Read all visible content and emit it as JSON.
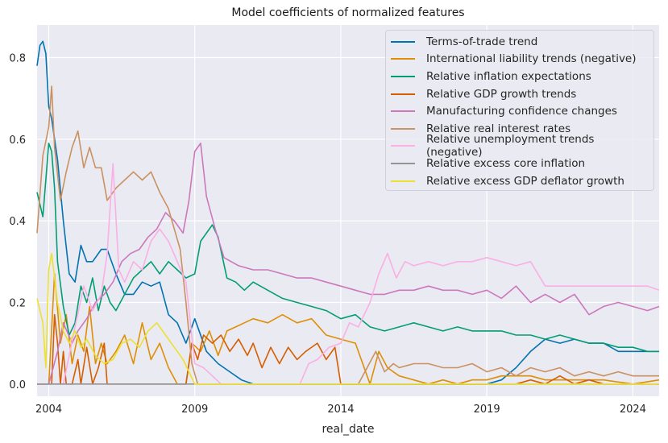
{
  "chart_data": {
    "type": "line",
    "title": "Model coefficients of normalized features",
    "xlabel": "real_date",
    "ylabel": "",
    "xlim": [
      2003.6,
      2024.9
    ],
    "ylim": [
      -0.03,
      0.88
    ],
    "xticks": [
      2004,
      2009,
      2014,
      2019,
      2024
    ],
    "yticks": [
      0.0,
      0.2,
      0.4,
      0.6,
      0.8
    ],
    "grid": true,
    "legend_position": "top-right",
    "series": [
      {
        "name": "Terms-of-trade trend",
        "color": "#0173b2",
        "x": [
          2003.6,
          2003.7,
          2003.8,
          2003.9,
          2004.0,
          2004.1,
          2004.3,
          2004.5,
          2004.7,
          2004.9,
          2005.1,
          2005.3,
          2005.5,
          2005.8,
          2006.0,
          2006.3,
          2006.6,
          2006.9,
          2007.2,
          2007.5,
          2007.8,
          2008.1,
          2008.4,
          2008.7,
          2009.0,
          2009.4,
          2009.8,
          2010.2,
          2010.6,
          2011.0,
          2012.0,
          2013.0,
          2014.0,
          2015.0,
          2016.0,
          2017.0,
          2018.0,
          2019.0,
          2019.5,
          2020.0,
          2020.5,
          2021.0,
          2021.5,
          2022.0,
          2022.5,
          2023.0,
          2023.5,
          2024.0,
          2024.5,
          2024.9
        ],
        "y": [
          0.78,
          0.83,
          0.84,
          0.81,
          0.68,
          0.65,
          0.55,
          0.4,
          0.27,
          0.25,
          0.34,
          0.3,
          0.3,
          0.33,
          0.33,
          0.27,
          0.22,
          0.22,
          0.25,
          0.24,
          0.25,
          0.17,
          0.15,
          0.1,
          0.16,
          0.08,
          0.05,
          0.03,
          0.01,
          0.0,
          0.0,
          0.0,
          0.0,
          0.0,
          0.0,
          0.0,
          0.0,
          0.0,
          0.01,
          0.04,
          0.08,
          0.11,
          0.1,
          0.11,
          0.1,
          0.1,
          0.08,
          0.08,
          0.08,
          0.08
        ]
      },
      {
        "name": "International liability trends (negative)",
        "color": "#de8f05",
        "x": [
          2003.6,
          2004.0,
          2004.2,
          2004.4,
          2004.6,
          2004.8,
          2005.0,
          2005.2,
          2005.4,
          2005.6,
          2005.8,
          2006.0,
          2006.3,
          2006.6,
          2006.9,
          2007.2,
          2007.5,
          2007.8,
          2008.1,
          2008.4,
          2008.7,
          2008.9,
          2009.2,
          2009.5,
          2009.8,
          2010.1,
          2010.4,
          2010.7,
          2011.0,
          2011.5,
          2012.0,
          2012.5,
          2013.0,
          2013.5,
          2014.0,
          2014.5,
          2015.0,
          2015.3,
          2015.6,
          2016.0,
          2016.5,
          2017.0,
          2017.5,
          2018.0,
          2018.5,
          2019.0,
          2019.5,
          2020.0,
          2020.5,
          2021.0,
          2022.0,
          2023.0,
          2024.0,
          2024.9
        ],
        "y": [
          0.0,
          0.0,
          0.27,
          0.1,
          0.17,
          0.05,
          0.12,
          0.08,
          0.19,
          0.05,
          0.1,
          0.05,
          0.08,
          0.12,
          0.05,
          0.15,
          0.06,
          0.1,
          0.04,
          0.0,
          0.0,
          0.1,
          0.08,
          0.13,
          0.07,
          0.13,
          0.14,
          0.15,
          0.16,
          0.15,
          0.17,
          0.15,
          0.16,
          0.12,
          0.11,
          0.1,
          0.0,
          0.08,
          0.04,
          0.02,
          0.01,
          0.0,
          0.01,
          0.0,
          0.01,
          0.01,
          0.02,
          0.02,
          0.02,
          0.01,
          0.01,
          0.01,
          0.0,
          0.01
        ]
      },
      {
        "name": "Relative inflation expectations",
        "color": "#029e73",
        "x": [
          2003.6,
          2003.8,
          2004.0,
          2004.1,
          2004.2,
          2004.3,
          2004.5,
          2004.7,
          2004.9,
          2005.1,
          2005.3,
          2005.5,
          2005.7,
          2005.9,
          2006.1,
          2006.3,
          2006.6,
          2006.9,
          2007.2,
          2007.5,
          2007.8,
          2008.1,
          2008.4,
          2008.7,
          2009.0,
          2009.2,
          2009.4,
          2009.6,
          2009.8,
          2010.1,
          2010.4,
          2010.7,
          2011.0,
          2011.5,
          2012.0,
          2012.5,
          2013.0,
          2013.5,
          2014.0,
          2014.5,
          2015.0,
          2015.5,
          2016.0,
          2016.5,
          2017.0,
          2017.5,
          2018.0,
          2018.5,
          2019.0,
          2019.5,
          2020.0,
          2020.5,
          2021.0,
          2021.5,
          2022.0,
          2022.5,
          2023.0,
          2023.5,
          2024.0,
          2024.5,
          2024.9
        ],
        "y": [
          0.47,
          0.41,
          0.59,
          0.57,
          0.48,
          0.3,
          0.19,
          0.12,
          0.15,
          0.24,
          0.2,
          0.26,
          0.18,
          0.24,
          0.2,
          0.18,
          0.22,
          0.26,
          0.28,
          0.3,
          0.27,
          0.3,
          0.28,
          0.26,
          0.27,
          0.35,
          0.37,
          0.39,
          0.36,
          0.26,
          0.25,
          0.23,
          0.25,
          0.23,
          0.21,
          0.2,
          0.19,
          0.18,
          0.16,
          0.17,
          0.14,
          0.13,
          0.14,
          0.15,
          0.14,
          0.13,
          0.14,
          0.13,
          0.13,
          0.13,
          0.12,
          0.12,
          0.11,
          0.12,
          0.11,
          0.1,
          0.1,
          0.09,
          0.09,
          0.08,
          0.08
        ]
      },
      {
        "name": "Relative GDP growth trends",
        "color": "#d55e00",
        "x": [
          2003.6,
          2004.1,
          2004.2,
          2004.3,
          2004.4,
          2004.5,
          2004.6,
          2004.8,
          2005.0,
          2005.1,
          2005.3,
          2005.5,
          2005.7,
          2005.9,
          2006.0,
          2006.2,
          2006.5,
          2008.7,
          2008.9,
          2009.1,
          2009.3,
          2009.6,
          2009.9,
          2010.2,
          2010.5,
          2010.8,
          2011.0,
          2011.3,
          2011.6,
          2011.9,
          2012.2,
          2012.5,
          2012.8,
          2013.2,
          2013.5,
          2013.8,
          2014.0,
          2014.5,
          2015.0,
          2016.0,
          2020.0,
          2020.5,
          2021.0,
          2021.5,
          2022.0,
          2022.5,
          2023.0,
          2024.0,
          2024.9
        ],
        "y": [
          0.0,
          0.0,
          0.17,
          0.1,
          0.0,
          0.08,
          0.0,
          0.0,
          0.06,
          0.0,
          0.09,
          0.0,
          0.04,
          0.1,
          0.0,
          0.0,
          0.0,
          0.0,
          0.1,
          0.06,
          0.12,
          0.1,
          0.12,
          0.08,
          0.11,
          0.07,
          0.1,
          0.04,
          0.09,
          0.05,
          0.09,
          0.06,
          0.08,
          0.1,
          0.06,
          0.09,
          0.0,
          0.0,
          0.0,
          0.0,
          0.0,
          0.01,
          0.0,
          0.02,
          0.0,
          0.01,
          0.0,
          0.0,
          0.0
        ]
      },
      {
        "name": "Manufacturing confidence changes",
        "color": "#cc78bc",
        "x": [
          2003.6,
          2004.0,
          2004.3,
          2004.5,
          2004.8,
          2005.0,
          2005.3,
          2005.6,
          2005.9,
          2006.2,
          2006.5,
          2006.8,
          2007.1,
          2007.4,
          2007.7,
          2008.0,
          2008.3,
          2008.6,
          2008.8,
          2009.0,
          2009.2,
          2009.4,
          2009.7,
          2010.0,
          2010.5,
          2011.0,
          2011.5,
          2012.0,
          2012.5,
          2013.0,
          2013.5,
          2014.0,
          2014.5,
          2015.0,
          2015.5,
          2016.0,
          2016.5,
          2017.0,
          2017.5,
          2018.0,
          2018.5,
          2019.0,
          2019.5,
          2020.0,
          2020.5,
          2021.0,
          2021.5,
          2022.0,
          2022.5,
          2023.0,
          2023.5,
          2024.0,
          2024.5,
          2024.9
        ],
        "y": [
          0.0,
          0.0,
          0.08,
          0.15,
          0.1,
          0.13,
          0.16,
          0.2,
          0.22,
          0.25,
          0.3,
          0.32,
          0.33,
          0.36,
          0.38,
          0.42,
          0.4,
          0.37,
          0.45,
          0.57,
          0.59,
          0.46,
          0.38,
          0.31,
          0.29,
          0.28,
          0.28,
          0.27,
          0.26,
          0.26,
          0.25,
          0.24,
          0.23,
          0.22,
          0.22,
          0.23,
          0.23,
          0.24,
          0.23,
          0.23,
          0.22,
          0.23,
          0.21,
          0.24,
          0.2,
          0.22,
          0.2,
          0.22,
          0.17,
          0.19,
          0.2,
          0.19,
          0.18,
          0.19
        ]
      },
      {
        "name": "Relative real interest rates",
        "color": "#ca9161",
        "x": [
          2003.6,
          2003.8,
          2004.0,
          2004.1,
          2004.2,
          2004.4,
          2004.6,
          2004.8,
          2005.0,
          2005.2,
          2005.4,
          2005.6,
          2005.8,
          2006.0,
          2006.3,
          2006.6,
          2006.9,
          2007.2,
          2007.5,
          2007.8,
          2008.1,
          2008.3,
          2008.5,
          2008.7,
          2008.9,
          2009.1,
          2009.5,
          2010.0,
          2012.0,
          2014.0,
          2014.6,
          2014.9,
          2015.2,
          2015.5,
          2015.8,
          2016.0,
          2016.5,
          2017.0,
          2017.5,
          2018.0,
          2018.5,
          2019.0,
          2019.5,
          2020.0,
          2020.5,
          2021.0,
          2021.5,
          2022.0,
          2022.5,
          2023.0,
          2023.5,
          2024.0,
          2024.5,
          2024.9
        ],
        "y": [
          0.37,
          0.56,
          0.63,
          0.73,
          0.58,
          0.45,
          0.52,
          0.58,
          0.62,
          0.53,
          0.58,
          0.53,
          0.53,
          0.45,
          0.48,
          0.5,
          0.52,
          0.5,
          0.52,
          0.47,
          0.43,
          0.38,
          0.33,
          0.2,
          0.05,
          0.0,
          0.0,
          0.0,
          0.0,
          0.0,
          0.0,
          0.04,
          0.08,
          0.03,
          0.05,
          0.04,
          0.05,
          0.05,
          0.04,
          0.04,
          0.05,
          0.03,
          0.04,
          0.02,
          0.04,
          0.03,
          0.04,
          0.02,
          0.03,
          0.02,
          0.03,
          0.02,
          0.02,
          0.02
        ]
      },
      {
        "name": "Relative unemployment trends (negative)",
        "color": "#fbafe4",
        "x": [
          2003.6,
          2004.5,
          2004.9,
          2005.2,
          2005.5,
          2005.8,
          2006.0,
          2006.2,
          2006.4,
          2006.6,
          2006.9,
          2007.2,
          2007.5,
          2007.8,
          2008.1,
          2008.4,
          2008.7,
          2009.0,
          2009.3,
          2009.6,
          2009.9,
          2012.6,
          2012.9,
          2013.2,
          2013.6,
          2014.0,
          2014.3,
          2014.6,
          2015.0,
          2015.3,
          2015.6,
          2015.9,
          2016.2,
          2016.5,
          2017.0,
          2017.5,
          2018.0,
          2018.5,
          2019.0,
          2019.5,
          2020.0,
          2020.5,
          2021.0,
          2021.5,
          2022.0,
          2022.5,
          2023.0,
          2023.5,
          2024.0,
          2024.5,
          2024.9
        ],
        "y": [
          0.0,
          0.0,
          0.14,
          0.24,
          0.18,
          0.22,
          0.32,
          0.54,
          0.28,
          0.25,
          0.3,
          0.28,
          0.35,
          0.38,
          0.35,
          0.3,
          0.25,
          0.05,
          0.04,
          0.02,
          0.0,
          0.0,
          0.05,
          0.06,
          0.09,
          0.1,
          0.15,
          0.14,
          0.2,
          0.27,
          0.32,
          0.26,
          0.3,
          0.29,
          0.3,
          0.29,
          0.3,
          0.3,
          0.31,
          0.3,
          0.29,
          0.3,
          0.24,
          0.24,
          0.24,
          0.24,
          0.24,
          0.24,
          0.24,
          0.24,
          0.23
        ]
      },
      {
        "name": "Relative excess core inflation",
        "color": "#949494",
        "x": [
          2003.6,
          2024.9
        ],
        "y": [
          0.0,
          0.0
        ]
      },
      {
        "name": "Relative excess GDP deflator growth",
        "color": "#ece133",
        "x": [
          2003.6,
          2003.8,
          2003.9,
          2004.0,
          2004.1,
          2004.3,
          2004.5,
          2004.7,
          2004.9,
          2005.1,
          2005.3,
          2005.6,
          2005.9,
          2006.2,
          2006.5,
          2006.8,
          2007.1,
          2007.4,
          2007.7,
          2008.0,
          2008.3,
          2008.6,
          2008.8,
          2009.0,
          2009.5,
          2024.9
        ],
        "y": [
          0.21,
          0.15,
          0.04,
          0.28,
          0.32,
          0.2,
          0.13,
          0.1,
          0.13,
          0.09,
          0.11,
          0.07,
          0.05,
          0.06,
          0.1,
          0.11,
          0.09,
          0.13,
          0.15,
          0.12,
          0.09,
          0.06,
          0.03,
          0.0,
          0.0,
          0.0
        ]
      }
    ]
  }
}
